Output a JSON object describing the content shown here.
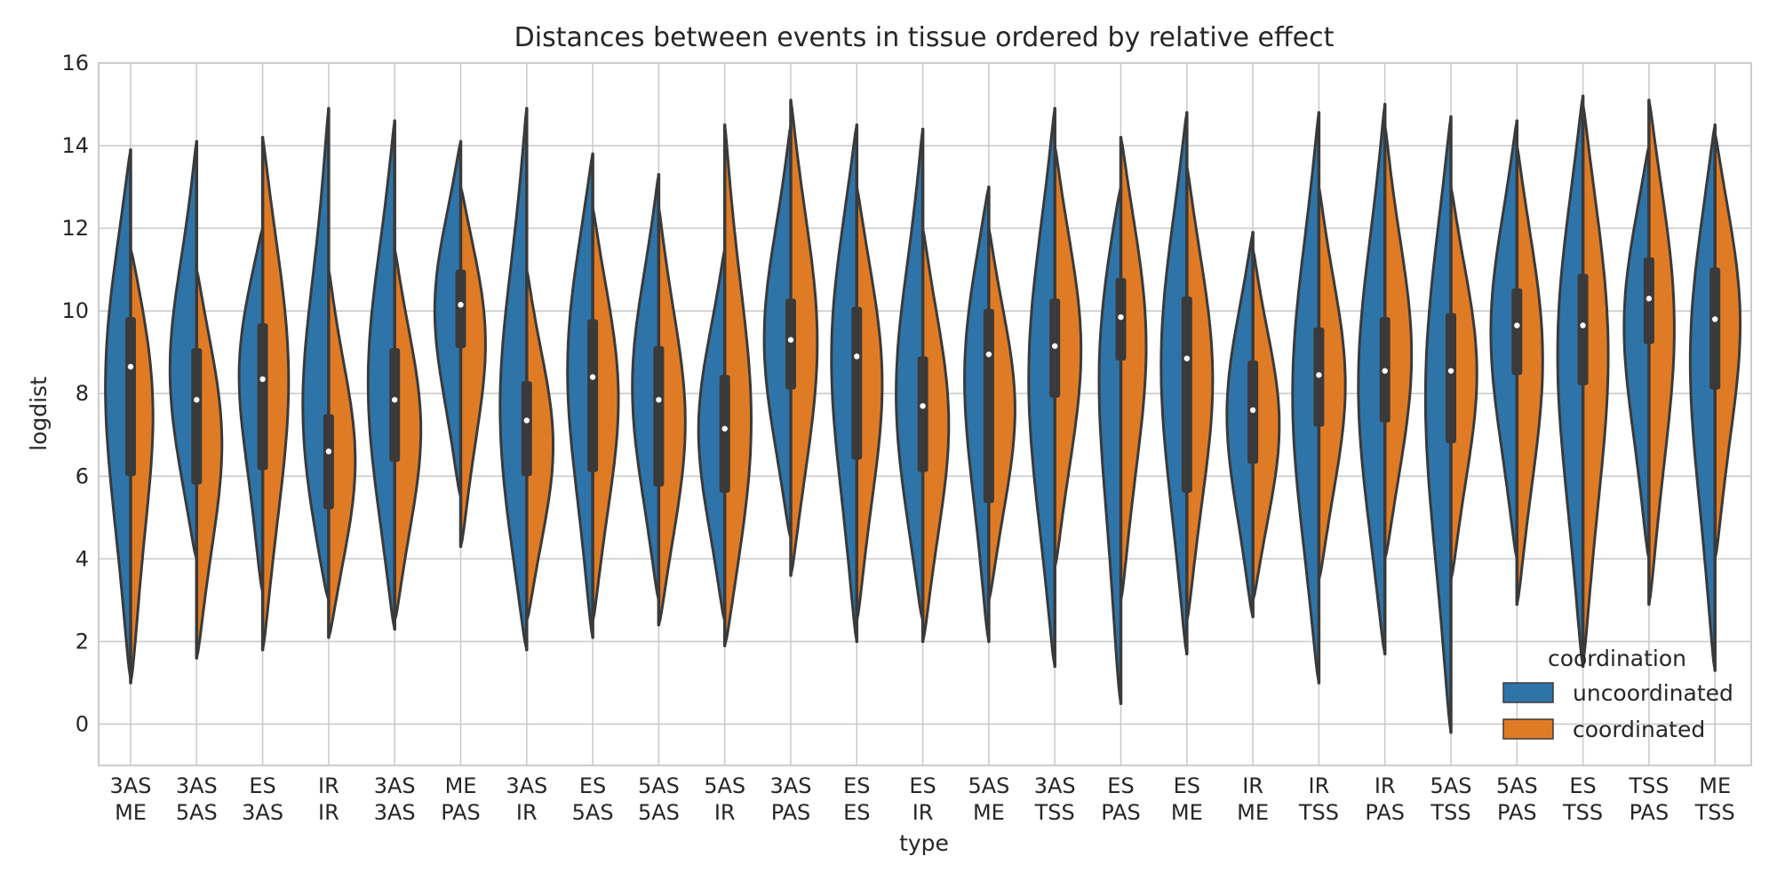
{
  "chart_data": {
    "type": "violin",
    "title": "Distances between events in tissue ordered by relative effect",
    "xlabel": "type",
    "ylabel": "logdist",
    "ylim": [
      -1,
      16
    ],
    "yticks": [
      0,
      2,
      4,
      6,
      8,
      10,
      12,
      14,
      16
    ],
    "grid": true,
    "legend": {
      "title": "coordination",
      "position": "bottom-right",
      "entries": [
        {
          "name": "uncoordinated",
          "color": "#2f74a8"
        },
        {
          "name": "coordinated",
          "color": "#e07b25"
        }
      ]
    },
    "categories": [
      {
        "line1": "3AS",
        "line2": "ME",
        "median": 8.65,
        "q1": 6.0,
        "q3": 9.85,
        "min": 1.0,
        "max": 13.9,
        "uncoord": {
          "lo": 1.1,
          "hi": 13.9,
          "peak": 9.2
        },
        "coord": {
          "lo": 1.0,
          "hi": 11.5,
          "peak": 9.0
        }
      },
      {
        "line1": "3AS",
        "line2": "5AS",
        "median": 7.85,
        "q1": 5.8,
        "q3": 9.1,
        "min": 1.6,
        "max": 14.1,
        "uncoord": {
          "lo": 4.0,
          "hi": 14.1,
          "peak": 8.5
        },
        "coord": {
          "lo": 1.6,
          "hi": 11.0,
          "peak": 7.5
        }
      },
      {
        "line1": "ES",
        "line2": "3AS",
        "median": 8.35,
        "q1": 6.15,
        "q3": 9.7,
        "min": 1.8,
        "max": 14.2,
        "uncoord": {
          "lo": 3.2,
          "hi": 12.0,
          "peak": 9.5
        },
        "coord": {
          "lo": 1.8,
          "hi": 14.2,
          "peak": 9.0
        }
      },
      {
        "line1": "IR",
        "line2": "IR",
        "median": 6.6,
        "q1": 5.2,
        "q3": 7.5,
        "min": 2.1,
        "max": 14.9,
        "uncoord": {
          "lo": 3.0,
          "hi": 14.9,
          "peak": 7.0
        },
        "coord": {
          "lo": 2.1,
          "hi": 11.0,
          "peak": 6.5
        }
      },
      {
        "line1": "3AS",
        "line2": "3AS",
        "median": 7.85,
        "q1": 6.35,
        "q3": 9.1,
        "min": 2.3,
        "max": 14.6,
        "uncoord": {
          "lo": 2.3,
          "hi": 14.6,
          "peak": 8.5
        },
        "coord": {
          "lo": 2.5,
          "hi": 11.5,
          "peak": 7.5
        }
      },
      {
        "line1": "ME",
        "line2": "PAS",
        "median": 10.15,
        "q1": 9.1,
        "q3": 11.0,
        "min": 4.3,
        "max": 14.1,
        "uncoord": {
          "lo": 5.5,
          "hi": 14.1,
          "peak": 10.5
        },
        "coord": {
          "lo": 4.3,
          "hi": 13.0,
          "peak": 10.0
        }
      },
      {
        "line1": "3AS",
        "line2": "IR",
        "median": 7.35,
        "q1": 6.0,
        "q3": 8.3,
        "min": 1.8,
        "max": 14.9,
        "uncoord": {
          "lo": 1.8,
          "hi": 14.9,
          "peak": 7.5
        },
        "coord": {
          "lo": 2.5,
          "hi": 11.0,
          "peak": 7.0
        }
      },
      {
        "line1": "ES",
        "line2": "5AS",
        "median": 8.4,
        "q1": 6.1,
        "q3": 9.8,
        "min": 2.1,
        "max": 13.8,
        "uncoord": {
          "lo": 2.1,
          "hi": 13.8,
          "peak": 9.5
        },
        "coord": {
          "lo": 2.5,
          "hi": 12.5,
          "peak": 8.5
        }
      },
      {
        "line1": "5AS",
        "line2": "5AS",
        "median": 7.85,
        "q1": 5.75,
        "q3": 9.15,
        "min": 2.4,
        "max": 13.3,
        "uncoord": {
          "lo": 3.0,
          "hi": 13.3,
          "peak": 8.5
        },
        "coord": {
          "lo": 2.4,
          "hi": 12.5,
          "peak": 7.5
        }
      },
      {
        "line1": "5AS",
        "line2": "IR",
        "median": 7.15,
        "q1": 5.6,
        "q3": 8.45,
        "min": 1.9,
        "max": 14.5,
        "uncoord": {
          "lo": 2.5,
          "hi": 11.5,
          "peak": 7.5
        },
        "coord": {
          "lo": 1.9,
          "hi": 14.5,
          "peak": 7.0
        }
      },
      {
        "line1": "3AS",
        "line2": "PAS",
        "median": 9.3,
        "q1": 8.1,
        "q3": 10.3,
        "min": 3.6,
        "max": 15.1,
        "uncoord": {
          "lo": 4.5,
          "hi": 14.5,
          "peak": 9.5
        },
        "coord": {
          "lo": 3.6,
          "hi": 15.1,
          "peak": 9.5
        }
      },
      {
        "line1": "ES",
        "line2": "ES",
        "median": 8.9,
        "q1": 6.4,
        "q3": 10.1,
        "min": 2.0,
        "max": 14.5,
        "uncoord": {
          "lo": 2.0,
          "hi": 14.5,
          "peak": 9.8
        },
        "coord": {
          "lo": 2.5,
          "hi": 13.0,
          "peak": 9.0
        }
      },
      {
        "line1": "ES",
        "line2": "IR",
        "median": 7.7,
        "q1": 6.1,
        "q3": 8.9,
        "min": 2.0,
        "max": 14.4,
        "uncoord": {
          "lo": 2.5,
          "hi": 14.4,
          "peak": 8.0
        },
        "coord": {
          "lo": 2.0,
          "hi": 12.0,
          "peak": 7.8
        }
      },
      {
        "line1": "5AS",
        "line2": "ME",
        "median": 8.95,
        "q1": 5.35,
        "q3": 10.05,
        "min": 2.0,
        "max": 13.0,
        "uncoord": {
          "lo": 2.0,
          "hi": 13.0,
          "peak": 9.5
        },
        "coord": {
          "lo": 3.0,
          "hi": 12.0,
          "peak": 8.0
        }
      },
      {
        "line1": "3AS",
        "line2": "TSS",
        "median": 9.15,
        "q1": 7.9,
        "q3": 10.3,
        "min": 1.4,
        "max": 14.9,
        "uncoord": {
          "lo": 1.4,
          "hi": 14.9,
          "peak": 9.0
        },
        "coord": {
          "lo": 3.8,
          "hi": 14.0,
          "peak": 9.5
        }
      },
      {
        "line1": "ES",
        "line2": "PAS",
        "median": 9.85,
        "q1": 8.8,
        "q3": 10.8,
        "min": 0.5,
        "max": 14.2,
        "uncoord": {
          "lo": 0.5,
          "hi": 13.0,
          "peak": 10.3
        },
        "coord": {
          "lo": 3.0,
          "hi": 14.2,
          "peak": 10.0
        }
      },
      {
        "line1": "ES",
        "line2": "ME",
        "median": 8.85,
        "q1": 5.6,
        "q3": 10.35,
        "min": 1.7,
        "max": 14.8,
        "uncoord": {
          "lo": 1.7,
          "hi": 14.8,
          "peak": 9.5
        },
        "coord": {
          "lo": 2.5,
          "hi": 13.5,
          "peak": 9.0
        }
      },
      {
        "line1": "IR",
        "line2": "ME",
        "median": 7.6,
        "q1": 6.3,
        "q3": 8.8,
        "min": 2.6,
        "max": 11.9,
        "uncoord": {
          "lo": 2.6,
          "hi": 11.9,
          "peak": 8.0
        },
        "coord": {
          "lo": 3.0,
          "hi": 11.5,
          "peak": 7.5
        }
      },
      {
        "line1": "IR",
        "line2": "TSS",
        "median": 8.45,
        "q1": 7.2,
        "q3": 9.6,
        "min": 1.0,
        "max": 14.8,
        "uncoord": {
          "lo": 1.0,
          "hi": 14.8,
          "peak": 8.5
        },
        "coord": {
          "lo": 3.5,
          "hi": 13.0,
          "peak": 8.5
        }
      },
      {
        "line1": "IR",
        "line2": "PAS",
        "median": 8.55,
        "q1": 7.3,
        "q3": 9.85,
        "min": 1.7,
        "max": 15.0,
        "uncoord": {
          "lo": 1.7,
          "hi": 15.0,
          "peak": 8.5
        },
        "coord": {
          "lo": 4.0,
          "hi": 14.5,
          "peak": 9.0
        }
      },
      {
        "line1": "5AS",
        "line2": "TSS",
        "median": 8.55,
        "q1": 6.8,
        "q3": 9.95,
        "min": -0.2,
        "max": 14.7,
        "uncoord": {
          "lo": -0.2,
          "hi": 14.7,
          "peak": 9.0
        },
        "coord": {
          "lo": 3.5,
          "hi": 13.0,
          "peak": 9.0
        }
      },
      {
        "line1": "5AS",
        "line2": "PAS",
        "median": 9.65,
        "q1": 8.45,
        "q3": 10.55,
        "min": 2.9,
        "max": 14.6,
        "uncoord": {
          "lo": 4.0,
          "hi": 14.6,
          "peak": 10.0
        },
        "coord": {
          "lo": 2.9,
          "hi": 14.0,
          "peak": 9.5
        }
      },
      {
        "line1": "ES",
        "line2": "TSS",
        "median": 9.65,
        "q1": 8.2,
        "q3": 10.9,
        "min": 1.4,
        "max": 15.2,
        "uncoord": {
          "lo": 1.4,
          "hi": 15.2,
          "peak": 10.0
        },
        "coord": {
          "lo": 1.5,
          "hi": 15.0,
          "peak": 10.0
        }
      },
      {
        "line1": "TSS",
        "line2": "PAS",
        "median": 10.3,
        "q1": 9.2,
        "q3": 11.3,
        "min": 2.9,
        "max": 15.1,
        "uncoord": {
          "lo": 4.0,
          "hi": 14.0,
          "peak": 10.5
        },
        "coord": {
          "lo": 2.9,
          "hi": 15.1,
          "peak": 10.5
        }
      },
      {
        "line1": "ME",
        "line2": "TSS",
        "median": 9.8,
        "q1": 8.1,
        "q3": 11.05,
        "min": 1.3,
        "max": 14.5,
        "uncoord": {
          "lo": 1.3,
          "hi": 14.5,
          "peak": 10.0
        },
        "coord": {
          "lo": 4.0,
          "hi": 14.3,
          "peak": 10.5
        }
      }
    ]
  }
}
